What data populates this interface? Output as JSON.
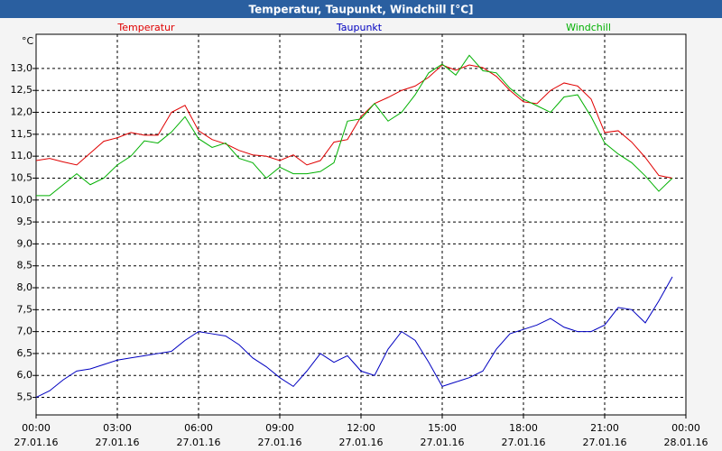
{
  "chart_data": {
    "type": "line",
    "title": "Temperatur, Taupunkt, Windchill [°C]",
    "ylabel": "°C",
    "grid": true,
    "x": [
      0,
      0.5,
      1,
      1.5,
      2,
      2.5,
      3,
      3.5,
      4,
      4.5,
      5,
      5.5,
      6,
      6.5,
      7,
      7.5,
      8,
      8.5,
      9,
      9.5,
      10,
      10.5,
      11,
      11.5,
      12,
      12.5,
      13,
      13.5,
      14,
      14.5,
      15,
      15.5,
      16,
      16.5,
      17,
      17.5,
      18,
      18.5,
      19,
      19.5,
      20,
      20.5,
      21,
      21.5,
      22,
      22.5,
      23,
      23.5
    ],
    "series": [
      {
        "name": "Temperatur",
        "color": "#e00000",
        "values": [
          10.9,
          10.95,
          10.87,
          10.8,
          11.07,
          11.34,
          11.42,
          11.54,
          11.48,
          11.48,
          12.0,
          12.16,
          11.58,
          11.38,
          11.28,
          11.13,
          11.03,
          11.0,
          10.9,
          11.03,
          10.8,
          10.9,
          11.32,
          11.38,
          11.9,
          12.2,
          12.34,
          12.5,
          12.6,
          12.8,
          13.08,
          12.96,
          13.08,
          13.02,
          12.82,
          12.5,
          12.24,
          12.2,
          12.5,
          12.67,
          12.6,
          12.3,
          11.54,
          11.58,
          11.32,
          10.97,
          10.56,
          10.5
        ]
      },
      {
        "name": "Taupunkt",
        "color": "#0000c0",
        "values": [
          5.5,
          5.65,
          5.9,
          6.1,
          6.15,
          6.25,
          6.35,
          6.4,
          6.45,
          6.5,
          6.55,
          6.8,
          7.0,
          6.95,
          6.9,
          6.7,
          6.4,
          6.2,
          5.95,
          5.75,
          6.1,
          6.5,
          6.3,
          6.45,
          6.1,
          6.0,
          6.6,
          7.0,
          6.8,
          6.3,
          5.75,
          5.85,
          5.95,
          6.1,
          6.6,
          6.95,
          7.05,
          7.15,
          7.3,
          7.1,
          7.0,
          7.0,
          7.15,
          7.55,
          7.5,
          7.2,
          7.7,
          8.25
        ]
      },
      {
        "name": "Windchill",
        "color": "#00b000",
        "values": [
          10.1,
          10.1,
          10.35,
          10.6,
          10.35,
          10.5,
          10.8,
          11.0,
          11.35,
          11.3,
          11.55,
          11.9,
          11.4,
          11.2,
          11.3,
          10.95,
          10.85,
          10.5,
          10.75,
          10.6,
          10.6,
          10.65,
          10.85,
          11.8,
          11.85,
          12.2,
          11.8,
          12.0,
          12.4,
          12.9,
          13.1,
          12.85,
          13.3,
          12.95,
          12.9,
          12.55,
          12.3,
          12.15,
          12.0,
          12.35,
          12.4,
          11.9,
          11.3,
          11.05,
          10.85,
          10.55,
          10.2,
          10.5
        ]
      }
    ],
    "xlim": [
      0,
      24
    ],
    "xticks": [
      {
        "value": 0,
        "label": "00:00"
      },
      {
        "value": 3,
        "label": "03:00"
      },
      {
        "value": 6,
        "label": "06:00"
      },
      {
        "value": 9,
        "label": "09:00"
      },
      {
        "value": 12,
        "label": "12:00"
      },
      {
        "value": 15,
        "label": "15:00"
      },
      {
        "value": 18,
        "label": "18:00"
      },
      {
        "value": 21,
        "label": "21:00"
      },
      {
        "value": 24,
        "label": "00:00"
      }
    ],
    "xtick_dates": [
      "27.01.16",
      "27.01.16",
      "27.01.16",
      "27.01.16",
      "27.01.16",
      "27.01.16",
      "27.01.16",
      "27.01.16",
      "28.01.16"
    ],
    "ylim": [
      5.1,
      13.78
    ],
    "yticks": [
      {
        "value": 5.5,
        "label": "5,5"
      },
      {
        "value": 6,
        "label": "6,0"
      },
      {
        "value": 6.5,
        "label": "6,5"
      },
      {
        "value": 7,
        "label": "7,0"
      },
      {
        "value": 7.5,
        "label": "7,5"
      },
      {
        "value": 8,
        "label": "8,0"
      },
      {
        "value": 8.5,
        "label": "8,5"
      },
      {
        "value": 9,
        "label": "9,0"
      },
      {
        "value": 9.5,
        "label": "9,5"
      },
      {
        "value": 10,
        "label": "10,0"
      },
      {
        "value": 10.5,
        "label": "10,5"
      },
      {
        "value": 11,
        "label": "11,0"
      },
      {
        "value": 11.5,
        "label": "11,5"
      },
      {
        "value": 12,
        "label": "12,0"
      },
      {
        "value": 12.5,
        "label": "12,5"
      },
      {
        "value": 13,
        "label": "13,0"
      }
    ]
  }
}
